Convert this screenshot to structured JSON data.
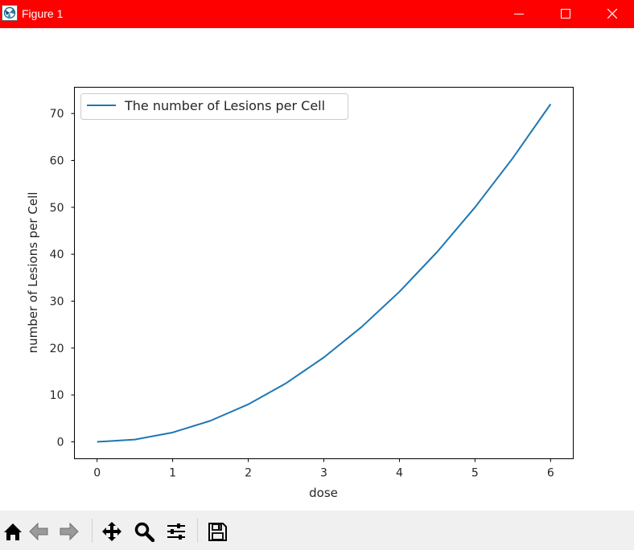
{
  "window": {
    "title": "Figure 1",
    "controls": [
      "minimize-icon",
      "maximize-icon",
      "close-icon"
    ],
    "titlebar_color": "#ff0000"
  },
  "toolbar": {
    "buttons": [
      "home-icon",
      "back-arrow-icon",
      "forward-arrow-icon",
      "pan-icon",
      "zoom-icon",
      "subplots-config-icon",
      "save-icon"
    ]
  },
  "chart_data": {
    "type": "line",
    "title": "",
    "xlabel": "dose",
    "ylabel": "number of Lesions per Cell",
    "xlim": [
      -0.3,
      6.3
    ],
    "ylim": [
      -3.6,
      75.6
    ],
    "xticks": [
      0,
      1,
      2,
      3,
      4,
      5,
      6
    ],
    "yticks": [
      0,
      10,
      20,
      30,
      40,
      50,
      60,
      70
    ],
    "grid": false,
    "legend_position": "top-left",
    "series": [
      {
        "name": "The number of Lesions per Cell",
        "color": "#1f77b4",
        "x": [
          0,
          0.5,
          1,
          1.5,
          2,
          2.5,
          3,
          3.5,
          4,
          4.5,
          5,
          5.5,
          6
        ],
        "y": [
          0,
          0.5,
          2,
          4.5,
          8,
          12.5,
          18,
          24.5,
          32,
          40.5,
          50,
          60.5,
          72
        ]
      }
    ]
  }
}
